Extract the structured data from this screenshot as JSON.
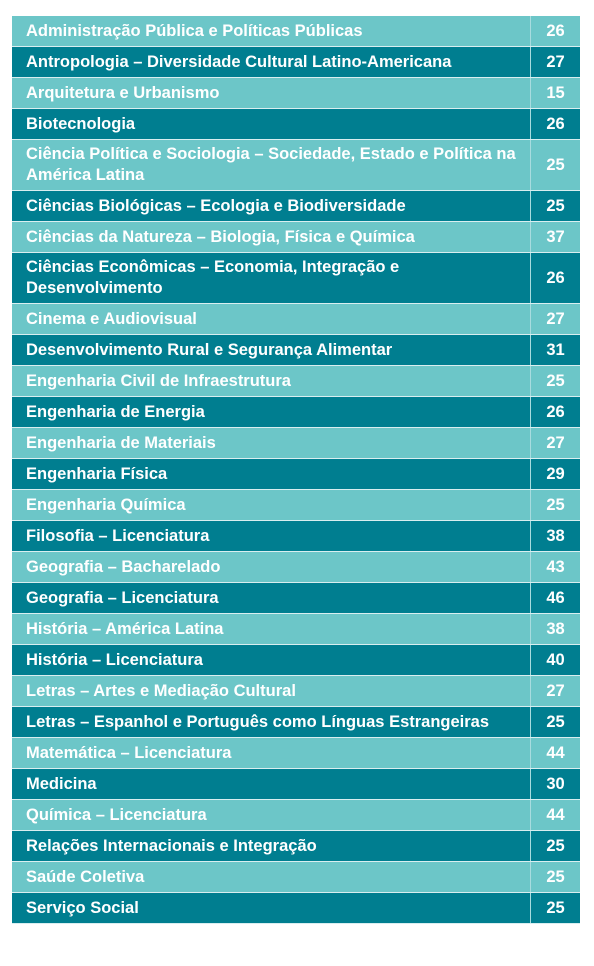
{
  "table": {
    "rows": [
      [
        "Administração Pública e Políticas Públicas",
        26
      ],
      [
        "Antropologia – Diversidade Cultural Latino-Americana",
        27
      ],
      [
        "Arquitetura e Urbanismo",
        15
      ],
      [
        "Biotecnologia",
        26
      ],
      [
        "Ciência Política e Sociologia – Sociedade, Estado e Política na América Latina",
        25
      ],
      [
        "Ciências Biológicas – Ecologia e Biodiversidade",
        25
      ],
      [
        "Ciências da Natureza – Biologia, Física e Química",
        37
      ],
      [
        "Ciências Econômicas – Economia, Integração e Desenvolvimento",
        26
      ],
      [
        "Cinema e Audiovisual",
        27
      ],
      [
        "Desenvolvimento Rural e Segurança Alimentar",
        31
      ],
      [
        "Engenharia Civil de Infraestrutura",
        25
      ],
      [
        "Engenharia de Energia",
        26
      ],
      [
        "Engenharia de Materiais",
        27
      ],
      [
        "Engenharia Física",
        29
      ],
      [
        "Engenharia Química",
        25
      ],
      [
        "Filosofia – Licenciatura",
        38
      ],
      [
        "Geografia – Bacharelado",
        43
      ],
      [
        "Geografia – Licenciatura",
        46
      ],
      [
        "História – América Latina",
        38
      ],
      [
        "História – Licenciatura",
        40
      ],
      [
        "Letras – Artes e Mediação Cultural",
        27
      ],
      [
        "Letras – Espanhol e Português como Línguas Estrangeiras",
        25
      ],
      [
        "Matemática – Licenciatura",
        44
      ],
      [
        "Medicina",
        30
      ],
      [
        "Química – Licenciatura",
        44
      ],
      [
        "Relações Internacionais e Integração",
        25
      ],
      [
        "Saúde Coletiva",
        25
      ],
      [
        "Serviço Social",
        25
      ]
    ]
  }
}
